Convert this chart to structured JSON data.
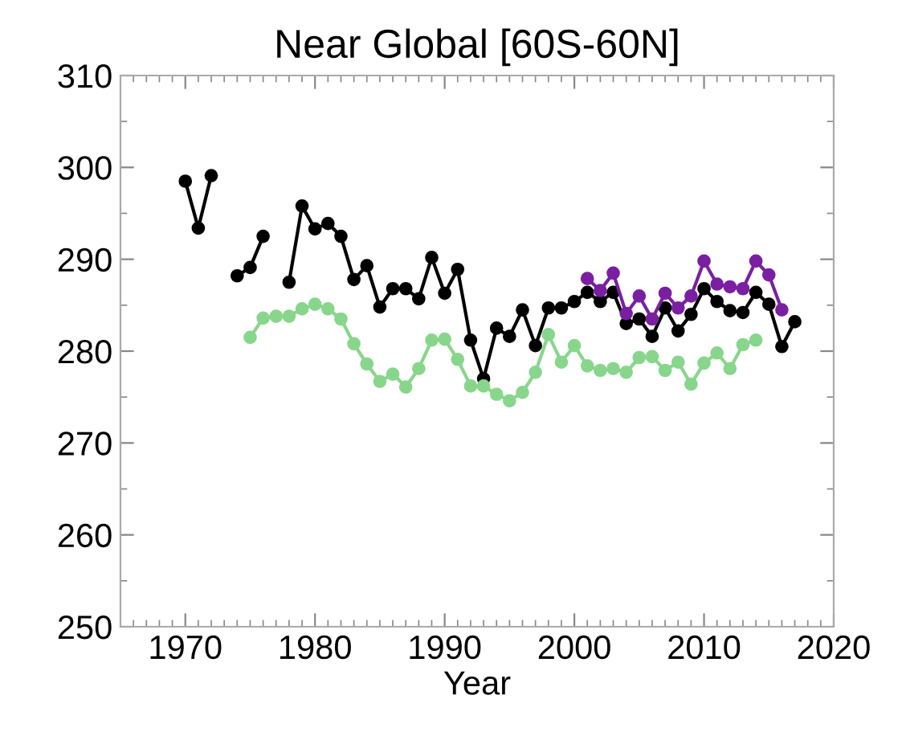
{
  "chart_data": {
    "type": "line",
    "title": "Near Global [60S-60N]",
    "xlabel": "Year",
    "xlim": [
      1965,
      2020
    ],
    "xticks": [
      1970,
      1980,
      1990,
      2000,
      2010,
      2020
    ],
    "ylim": [
      250,
      310
    ],
    "yticks": [
      250,
      260,
      270,
      280,
      290,
      300,
      310
    ],
    "grid": false,
    "legend": false,
    "marker": "circle",
    "line_style": "solid",
    "series": [
      {
        "color": "#000000",
        "x": [
          1970,
          1971,
          1972,
          1973,
          1974,
          1975,
          1976,
          1977,
          1978,
          1979,
          1980,
          1981,
          1982,
          1983,
          1984,
          1985,
          1986,
          1987,
          1988,
          1989,
          1990,
          1991,
          1992,
          1993,
          1994,
          1995,
          1996,
          1997,
          1998,
          1999,
          2000,
          2001,
          2002,
          2003,
          2004,
          2005,
          2006,
          2007,
          2008,
          2009,
          2010,
          2011,
          2012,
          2013,
          2014,
          2015,
          2016,
          2017
        ],
        "values": [
          298.5,
          293.4,
          299.1,
          null,
          288.2,
          289.1,
          292.5,
          null,
          287.5,
          295.8,
          293.3,
          293.9,
          292.5,
          287.8,
          289.3,
          284.8,
          286.8,
          286.8,
          285.7,
          290.2,
          286.3,
          288.9,
          281.2,
          277.0,
          282.5,
          281.6,
          284.5,
          280.6,
          284.7,
          284.7,
          285.4,
          286.4,
          285.4,
          286.4,
          283.0,
          283.5,
          281.6,
          284.7,
          282.2,
          284.0,
          286.8,
          285.4,
          284.4,
          284.2,
          286.4,
          285.1,
          280.5,
          283.2
        ]
      },
      {
        "color": "#7a1fa2",
        "x": [
          2001,
          2002,
          2003,
          2004,
          2005,
          2006,
          2007,
          2008,
          2009,
          2010,
          2011,
          2012,
          2013,
          2014,
          2015,
          2016
        ],
        "values": [
          287.9,
          286.6,
          288.5,
          284.1,
          286.0,
          283.5,
          286.3,
          284.7,
          286.0,
          289.8,
          287.3,
          287.0,
          286.8,
          289.8,
          288.3,
          284.5
        ]
      },
      {
        "color": "#88d68c",
        "x": [
          1975,
          1976,
          1977,
          1978,
          1979,
          1980,
          1981,
          1982,
          1983,
          1984,
          1985,
          1986,
          1987,
          1988,
          1989,
          1990,
          1991,
          1992,
          1993,
          1994,
          1995,
          1996,
          1997,
          1998,
          1999,
          2000,
          2001,
          2002,
          2003,
          2004,
          2005,
          2006,
          2007,
          2008,
          2009,
          2010,
          2011,
          2012,
          2013,
          2014
        ],
        "values": [
          281.5,
          283.6,
          283.8,
          283.8,
          284.6,
          285.1,
          284.6,
          283.5,
          280.8,
          278.6,
          276.7,
          277.5,
          276.1,
          278.1,
          281.2,
          281.3,
          279.1,
          276.2,
          276.2,
          275.3,
          274.6,
          275.5,
          277.7,
          281.8,
          278.8,
          280.6,
          278.4,
          277.9,
          278.1,
          277.7,
          279.3,
          279.4,
          277.9,
          278.8,
          276.4,
          278.7,
          279.8,
          278.1,
          280.7,
          281.2
        ]
      }
    ]
  }
}
